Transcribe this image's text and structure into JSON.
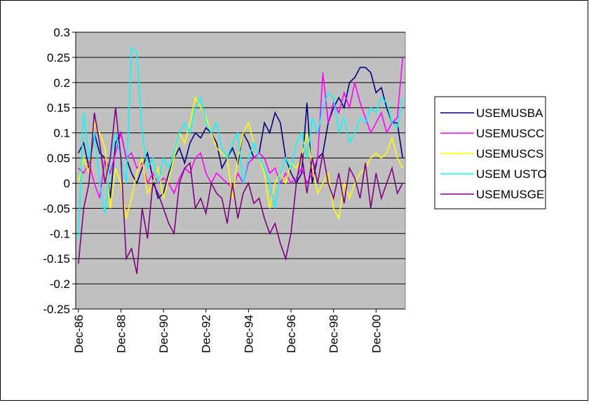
{
  "chart_data": {
    "type": "line",
    "categories": [
      "Dec-86",
      null,
      null,
      null,
      null,
      null,
      null,
      null,
      "Dec-88",
      null,
      null,
      null,
      null,
      null,
      null,
      null,
      "Dec-90",
      null,
      null,
      null,
      null,
      null,
      null,
      null,
      "Dec-92",
      null,
      null,
      null,
      null,
      null,
      null,
      null,
      "Dec-94",
      null,
      null,
      null,
      null,
      null,
      null,
      null,
      "Dec-96",
      null,
      null,
      null,
      null,
      null,
      null,
      null,
      "Dec-98",
      null,
      null,
      null,
      null,
      null,
      null,
      null,
      "Dec-00",
      null,
      null,
      null,
      null,
      null
    ],
    "series": [
      {
        "name": "USEMUSBA",
        "color": "#000080",
        "values": [
          0.06,
          0.08,
          0.03,
          0.1,
          0.06,
          0.05,
          -0.03,
          0.08,
          0.1,
          0.05,
          0.02,
          0.0,
          0.03,
          0.06,
          0.01,
          -0.03,
          -0.02,
          0.02,
          0.05,
          0.07,
          0.04,
          0.08,
          0.1,
          0.09,
          0.11,
          0.1,
          0.08,
          0.03,
          0.05,
          0.07,
          0.04,
          0.1,
          0.08,
          0.05,
          0.06,
          0.12,
          0.1,
          0.14,
          0.12,
          0.05,
          0.02,
          0.0,
          0.02,
          0.16,
          0.0,
          0.05,
          0.06,
          0.12,
          0.15,
          0.17,
          0.15,
          0.2,
          0.21,
          0.23,
          0.23,
          0.22,
          0.18,
          0.19,
          0.15,
          0.12,
          0.12,
          0.05
        ]
      },
      {
        "name": "USEMUSCC",
        "color": "#ff00ff",
        "values": [
          0.03,
          0.02,
          0.04,
          0.0,
          -0.03,
          0.05,
          0.02,
          0.06,
          0.1,
          0.05,
          0.06,
          0.03,
          0.04,
          0.0,
          0.02,
          0.0,
          0.01,
          0.0,
          -0.02,
          0.01,
          0.03,
          0.02,
          0.05,
          0.06,
          0.02,
          0.0,
          0.02,
          0.01,
          0.0,
          -0.01,
          0.02,
          0.0,
          0.04,
          0.05,
          0.06,
          0.05,
          0.02,
          0.03,
          0.0,
          0.02,
          0.0,
          0.01,
          0.03,
          0.0,
          0.02,
          0.05,
          0.22,
          0.12,
          0.16,
          0.14,
          0.18,
          0.15,
          0.2,
          0.16,
          0.13,
          0.1,
          0.12,
          0.14,
          0.1,
          0.12,
          0.13,
          0.25
        ]
      },
      {
        "name": "USEMUSCS",
        "color": "#ffff00",
        "values": [
          0.0,
          0.05,
          0.02,
          0.12,
          0.1,
          0.07,
          -0.05,
          0.03,
          0.0,
          -0.07,
          -0.03,
          0.02,
          0.05,
          -0.02,
          0.0,
          0.03,
          -0.03,
          0.01,
          0.05,
          0.1,
          0.08,
          0.12,
          0.17,
          0.15,
          0.13,
          0.1,
          0.07,
          0.06,
          0.05,
          -0.03,
          0.05,
          0.1,
          0.12,
          0.08,
          0.05,
          0.02,
          -0.05,
          0.0,
          0.02,
          0.0,
          0.04,
          0.03,
          0.05,
          0.1,
          0.03,
          -0.02,
          0.0,
          0.02,
          -0.05,
          -0.07,
          0.0,
          -0.03,
          0.0,
          0.02,
          0.03,
          0.05,
          0.06,
          0.05,
          0.06,
          0.09,
          0.05,
          0.03
        ]
      },
      {
        "name": "USEM USTO",
        "color": "#00ffff",
        "values": [
          -0.11,
          0.14,
          0.05,
          0.1,
          0.0,
          -0.06,
          0.05,
          0.1,
          0.05,
          0.0,
          0.27,
          0.26,
          0.1,
          0.03,
          0.05,
          0.0,
          0.05,
          0.03,
          0.06,
          0.1,
          0.12,
          0.1,
          0.15,
          0.17,
          0.12,
          0.1,
          0.12,
          0.07,
          0.05,
          0.08,
          0.1,
          0.0,
          0.05,
          0.08,
          0.05,
          0.03,
          0.0,
          -0.05,
          0.02,
          0.05,
          0.03,
          0.08,
          0.1,
          0.05,
          0.13,
          0.1,
          0.15,
          0.18,
          0.17,
          0.1,
          0.13,
          0.08,
          0.1,
          0.13,
          0.12,
          0.15,
          0.14,
          0.17,
          0.16,
          0.12,
          0.11,
          0.17
        ]
      },
      {
        "name": "USEMUSGE",
        "color": "#800080",
        "values": [
          -0.16,
          -0.05,
          0.0,
          0.14,
          0.08,
          0.0,
          0.05,
          0.15,
          0.05,
          -0.15,
          -0.13,
          -0.18,
          -0.05,
          -0.11,
          0.0,
          -0.02,
          -0.05,
          -0.08,
          -0.1,
          0.0,
          0.03,
          0.04,
          -0.05,
          -0.03,
          -0.06,
          0.0,
          -0.02,
          -0.03,
          -0.08,
          0.0,
          -0.07,
          -0.02,
          0.0,
          -0.04,
          -0.03,
          -0.07,
          -0.1,
          -0.08,
          -0.12,
          -0.15,
          -0.1,
          0.0,
          0.06,
          -0.02,
          0.05,
          0.0,
          0.06,
          0.0,
          -0.03,
          0.02,
          -0.04,
          0.03,
          0.01,
          -0.03,
          0.04,
          -0.05,
          0.02,
          -0.03,
          0.0,
          0.03,
          -0.02,
          0.0
        ]
      }
    ],
    "ylim": [
      -0.25,
      0.3
    ],
    "yticks": [
      -0.25,
      -0.2,
      -0.15,
      -0.1,
      -0.05,
      0,
      0.05,
      0.1,
      0.15,
      0.2,
      0.25,
      0.3
    ],
    "grid": true,
    "plot_background": "#c0c0c0",
    "legend": "right"
  }
}
